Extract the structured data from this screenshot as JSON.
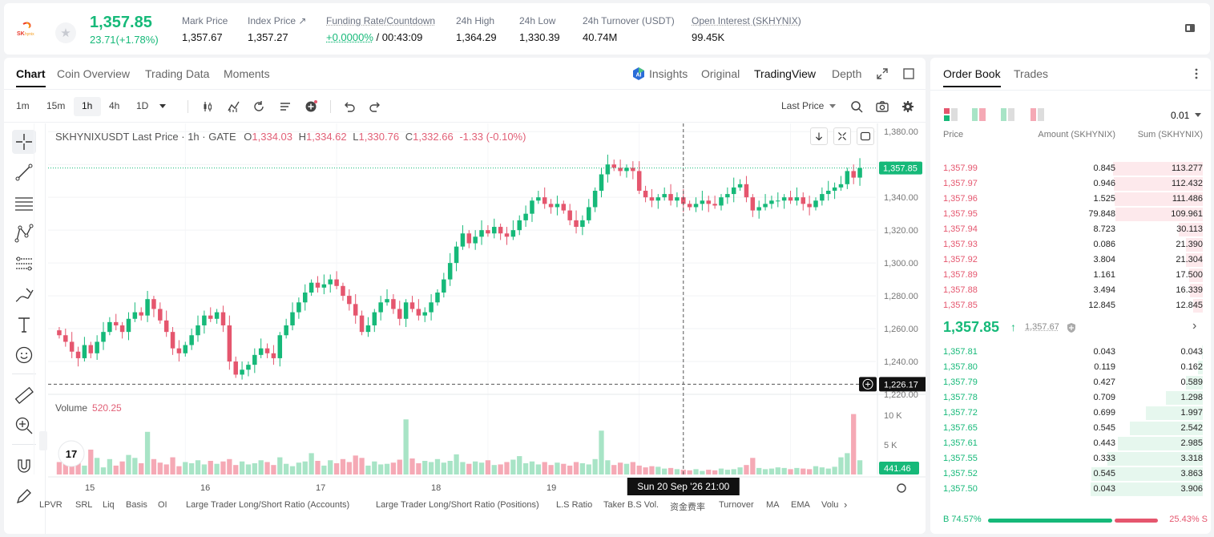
{
  "ticker": {
    "logo_text": "SK hynix",
    "last_price": "1,357.85",
    "change": "23.71(+1.78%)",
    "stats": [
      {
        "label": "Mark Price",
        "value": "1,357.67"
      },
      {
        "label": "Index Price ↗",
        "value": "1,357.27"
      },
      {
        "label": "Funding Rate/Countdown",
        "value_green": "+0.0000%",
        "value": " / 00:43:09"
      },
      {
        "label": "24h High",
        "value": "1,364.29"
      },
      {
        "label": "24h Low",
        "value": "1,330.39"
      },
      {
        "label": "24h Turnover (USDT)",
        "value": "40.74M"
      },
      {
        "label": "Open Interest (SKHYNIX)",
        "value": "99.45K"
      }
    ]
  },
  "chart_tabs": [
    "Chart",
    "Coin Overview",
    "Trading Data",
    "Moments"
  ],
  "view_tabs": [
    "Insights",
    "Original",
    "TradingView",
    "Depth"
  ],
  "insights_badge": "AI",
  "timeframes": [
    "1m",
    "15m",
    "1h",
    "4h",
    "1D"
  ],
  "price_source": "Last Price",
  "legend": {
    "title": "SKHYNIXUSDT Last Price · 1h · GATE",
    "o_label": "O",
    "o": "1,334.03",
    "h_label": "H",
    "h": "1,334.62",
    "l_label": "L",
    "l": "1,330.76",
    "c_label": "C",
    "c": "1,332.66",
    "chg": "-1.33 (-0.10%)"
  },
  "volume_legend": {
    "label": "Volume",
    "value": "520.25"
  },
  "price_axis": [
    "1,380.00",
    "1,360.00",
    "1,340.00",
    "1,320.00",
    "1,300.00",
    "1,280.00",
    "1,260.00",
    "1,240.00",
    "1,220.00"
  ],
  "volume_axis": [
    "10 K",
    "5 K"
  ],
  "date_axis": [
    "15",
    "16",
    "17",
    "18",
    "19",
    "20"
  ],
  "last_price_tag": "1,357.85",
  "crosshair_price_tag": "1,226.17",
  "volume_tag": "441.46",
  "crosshair_time": "Sun 20 Sep '26   21:00",
  "tv_logo": "17",
  "indicators": [
    "LPVR",
    "SRL",
    "Liq",
    "Basis",
    "OI",
    "Large Trader Long/Short Ratio (Accounts)",
    "Large Trader Long/Short Ratio (Positions)",
    "L.S Ratio",
    "Taker B.S Vol.",
    "资金费率",
    "Turnover",
    "MA",
    "EMA",
    "Volu"
  ],
  "colors": {
    "up": "#16b979",
    "down": "#e5566e",
    "up_vol": "#a8e4c6",
    "down_vol": "#f5a9b5"
  },
  "chart_data": {
    "type": "candlestick",
    "title": "SKHYNIXUSDT Last Price · 1h · GATE",
    "y_range": [
      1220,
      1385
    ],
    "x_ticks": [
      "15",
      "16",
      "17",
      "18",
      "19",
      "20"
    ],
    "closes": [
      1256,
      1252,
      1246,
      1242,
      1250,
      1245,
      1252,
      1258,
      1264,
      1262,
      1258,
      1266,
      1270,
      1268,
      1278,
      1272,
      1265,
      1258,
      1248,
      1245,
      1250,
      1256,
      1262,
      1268,
      1266,
      1270,
      1262,
      1240,
      1232,
      1235,
      1238,
      1244,
      1248,
      1245,
      1242,
      1256,
      1262,
      1270,
      1276,
      1282,
      1288,
      1285,
      1287,
      1290,
      1286,
      1280,
      1275,
      1268,
      1258,
      1262,
      1270,
      1276,
      1278,
      1272,
      1266,
      1276,
      1272,
      1268,
      1270,
      1276,
      1282,
      1290,
      1300,
      1310,
      1318,
      1312,
      1316,
      1320,
      1318,
      1322,
      1318,
      1316,
      1320,
      1326,
      1330,
      1338,
      1340,
      1336,
      1334,
      1336,
      1332,
      1326,
      1322,
      1326,
      1334,
      1344,
      1354,
      1360,
      1358,
      1356,
      1358,
      1356,
      1344,
      1340,
      1338,
      1340,
      1342,
      1338,
      1340,
      1336,
      1334,
      1336,
      1338,
      1336,
      1335,
      1340,
      1342,
      1346,
      1348,
      1340,
      1332,
      1334,
      1336,
      1338,
      1338,
      1340,
      1338,
      1340,
      1336,
      1334,
      1338,
      1342,
      1344,
      1346,
      1348,
      1356,
      1352,
      1357.85
    ],
    "volumes": [
      2100,
      1800,
      1600,
      2200,
      1500,
      4200,
      2800,
      1200,
      2600,
      1500,
      2200,
      3300,
      2800,
      1900,
      7200,
      2600,
      2000,
      1700,
      2900,
      1400,
      2100,
      1900,
      2400,
      1700,
      2300,
      1800,
      2200,
      2600,
      1600,
      2200,
      1700,
      1900,
      2400,
      2100,
      1600,
      2900,
      1800,
      1400,
      2000,
      2200,
      3600,
      2300,
      1500,
      2400,
      1900,
      2600,
      2100,
      3200,
      2800,
      1500,
      2200,
      1700,
      1800,
      2000,
      2500,
      9300,
      2700,
      1900,
      2300,
      2100,
      2600,
      2000,
      2300,
      3400,
      2100,
      1800,
      2200,
      2000,
      2400,
      1600,
      1700,
      2100,
      2500,
      3100,
      1900,
      2200,
      1700,
      2100,
      1600,
      2000,
      1800,
      1500,
      2100,
      1900,
      1700,
      2600,
      7400,
      2400,
      1600,
      2000,
      1800,
      2100,
      1500,
      1200,
      1400,
      1300,
      1000,
      1100,
      900,
      800,
      700,
      900,
      600,
      800,
      700,
      1000,
      800,
      900,
      1200,
      1600,
      2800,
      1100,
      900,
      1000,
      1200,
      1100,
      900,
      1100,
      1000,
      900,
      1400,
      1200,
      1000,
      1300,
      2900,
      3600,
      10200,
      2400
    ]
  },
  "orderbook": {
    "tabs": [
      "Order Book",
      "Trades"
    ],
    "precision": "0.01",
    "headers": [
      "Price",
      "Amount (SKHYNIX)",
      "Sum (SKHYNIX)"
    ],
    "asks": [
      [
        "1,357.99",
        "0.845",
        "113.277"
      ],
      [
        "1,357.97",
        "0.946",
        "112.432"
      ],
      [
        "1,357.96",
        "1.525",
        "111.486"
      ],
      [
        "1,357.95",
        "79.848",
        "109.961"
      ],
      [
        "1,357.94",
        "8.723",
        "30.113"
      ],
      [
        "1,357.93",
        "0.086",
        "21.390"
      ],
      [
        "1,357.92",
        "3.804",
        "21.304"
      ],
      [
        "1,357.89",
        "1.161",
        "17.500"
      ],
      [
        "1,357.88",
        "3.494",
        "16.339"
      ],
      [
        "1,357.85",
        "12.845",
        "12.845"
      ]
    ],
    "ask_depth": [
      1.0,
      0.99,
      0.98,
      0.97,
      0.27,
      0.19,
      0.19,
      0.15,
      0.14,
      0.11
    ],
    "mid_price": "1,357.85",
    "mid_mark": "1,357.67",
    "bids": [
      [
        "1,357.81",
        "0.043",
        "0.043"
      ],
      [
        "1,357.80",
        "0.119",
        "0.162"
      ],
      [
        "1,357.79",
        "0.427",
        "0.589"
      ],
      [
        "1,357.78",
        "0.709",
        "1.298"
      ],
      [
        "1,357.72",
        "0.699",
        "1.997"
      ],
      [
        "1,357.65",
        "0.545",
        "2.542"
      ],
      [
        "1,357.61",
        "0.443",
        "2.985"
      ],
      [
        "1,357.55",
        "0.333",
        "3.318"
      ],
      [
        "1,357.52",
        "0.545",
        "3.863"
      ],
      [
        "1,357.50",
        "0.043",
        "3.906"
      ]
    ],
    "bid_depth": [
      0.01,
      0.04,
      0.15,
      0.33,
      0.51,
      0.65,
      0.76,
      0.85,
      0.99,
      1.0
    ],
    "buy_ratio": "B 74.57%",
    "sell_ratio": "25.43% S",
    "buy_fraction": 0.7457
  }
}
